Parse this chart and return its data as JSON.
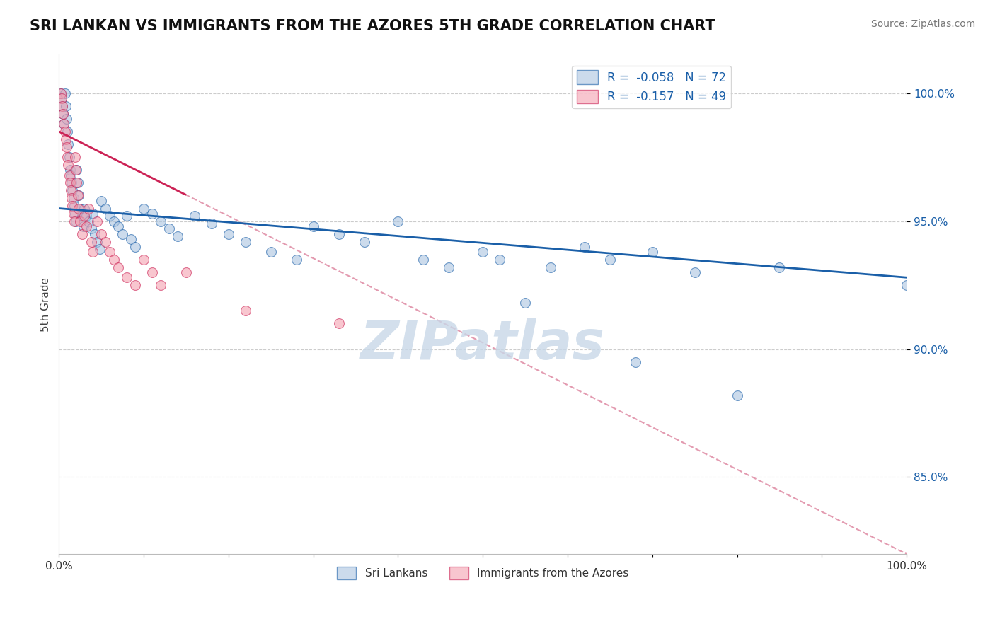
{
  "title": "SRI LANKAN VS IMMIGRANTS FROM THE AZORES 5TH GRADE CORRELATION CHART",
  "source": "Source: ZipAtlas.com",
  "ylabel": "5th Grade",
  "xlim": [
    0.0,
    100.0
  ],
  "ylim": [
    82.0,
    101.5
  ],
  "yticks": [
    85.0,
    90.0,
    95.0,
    100.0
  ],
  "ytick_labels": [
    "85.0%",
    "90.0%",
    "95.0%",
    "100.0%"
  ],
  "grid_color": "#cccccc",
  "background_color": "#ffffff",
  "blue_color": "#aac4e0",
  "pink_color": "#f4a0b0",
  "blue_line_color": "#1a5fa8",
  "pink_line_color": "#cc2255",
  "legend_R1": "-0.058",
  "legend_N1": "72",
  "legend_R2": "-0.157",
  "legend_N2": "49",
  "watermark": "ZIPatlas",
  "watermark_color": "#c8d8e8",
  "sri_lankan_x": [
    0.2,
    0.3,
    0.4,
    0.5,
    0.6,
    0.7,
    0.8,
    0.9,
    1.0,
    1.1,
    1.2,
    1.3,
    1.4,
    1.5,
    1.6,
    1.7,
    1.8,
    1.9,
    2.0,
    2.1,
    2.2,
    2.3,
    2.5,
    2.7,
    2.9,
    3.0,
    3.2,
    3.5,
    3.8,
    4.0,
    4.2,
    4.5,
    4.8,
    5.0,
    5.5,
    6.0,
    6.5,
    7.0,
    7.5,
    8.0,
    8.5,
    9.0,
    10.0,
    11.0,
    12.0,
    13.0,
    14.0,
    16.0,
    18.0,
    20.0,
    22.0,
    25.0,
    28.0,
    30.0,
    33.0,
    36.0,
    40.0,
    43.0,
    46.0,
    50.0,
    52.0,
    55.0,
    58.0,
    62.0,
    65.0,
    68.0,
    70.0,
    75.0,
    80.0,
    85.0,
    100.0
  ],
  "sri_lankan_y": [
    100.0,
    99.8,
    99.5,
    99.2,
    98.8,
    100.0,
    99.5,
    99.0,
    98.5,
    98.0,
    97.5,
    97.0,
    96.8,
    96.5,
    96.2,
    95.9,
    95.6,
    95.3,
    95.0,
    97.0,
    96.5,
    96.0,
    95.5,
    95.2,
    94.8,
    95.5,
    95.2,
    95.0,
    94.7,
    95.3,
    94.5,
    94.2,
    93.9,
    95.8,
    95.5,
    95.2,
    95.0,
    94.8,
    94.5,
    95.2,
    94.3,
    94.0,
    95.5,
    95.3,
    95.0,
    94.7,
    94.4,
    95.2,
    94.9,
    94.5,
    94.2,
    93.8,
    93.5,
    94.8,
    94.5,
    94.2,
    95.0,
    93.5,
    93.2,
    93.8,
    93.5,
    91.8,
    93.2,
    94.0,
    93.5,
    89.5,
    93.8,
    93.0,
    88.2,
    93.2,
    92.5
  ],
  "azores_x": [
    0.2,
    0.3,
    0.4,
    0.5,
    0.6,
    0.7,
    0.8,
    0.9,
    1.0,
    1.1,
    1.2,
    1.3,
    1.4,
    1.5,
    1.6,
    1.7,
    1.8,
    1.9,
    2.0,
    2.1,
    2.2,
    2.3,
    2.5,
    2.7,
    3.0,
    3.2,
    3.5,
    3.8,
    4.0,
    4.5,
    5.0,
    5.5,
    6.0,
    6.5,
    7.0,
    8.0,
    9.0,
    10.0,
    11.0,
    12.0,
    15.0,
    22.0,
    33.0
  ],
  "azores_y": [
    100.0,
    99.8,
    99.5,
    99.2,
    98.8,
    98.5,
    98.2,
    97.9,
    97.5,
    97.2,
    96.8,
    96.5,
    96.2,
    95.9,
    95.6,
    95.3,
    95.0,
    97.5,
    97.0,
    96.5,
    96.0,
    95.5,
    95.0,
    94.5,
    95.2,
    94.8,
    95.5,
    94.2,
    93.8,
    95.0,
    94.5,
    94.2,
    93.8,
    93.5,
    93.2,
    92.8,
    92.5,
    93.5,
    93.0,
    92.5,
    93.0,
    91.5,
    91.0
  ],
  "blue_trendline_x0": 0.0,
  "blue_trendline_y0": 95.5,
  "blue_trendline_x1": 100.0,
  "blue_trendline_y1": 92.8,
  "pink_trendline_x0": 0.0,
  "pink_trendline_y0": 98.5,
  "pink_trendline_x1": 100.0,
  "pink_trendline_y1": 82.0,
  "dashed_line_color": "#e090a8"
}
